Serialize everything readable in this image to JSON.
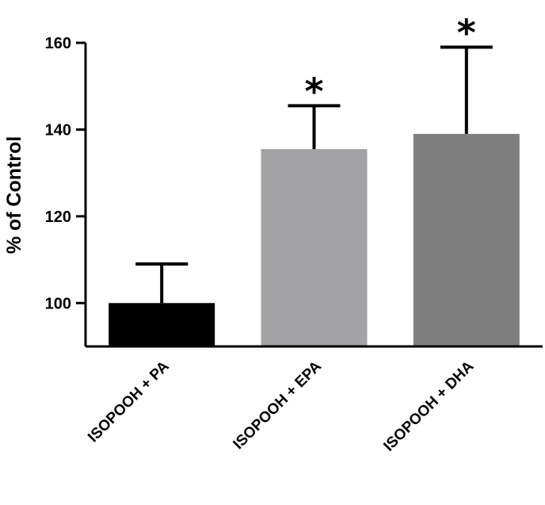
{
  "chart_data": {
    "type": "bar",
    "ylabel": "% of Control",
    "ylim": [
      90,
      160
    ],
    "yticks": [
      100,
      120,
      140,
      160
    ],
    "grid": false,
    "categories": [
      "ISOPOOH + PA",
      "ISOPOOH + EPA",
      "ISOPOOH + DHA"
    ],
    "values": [
      100,
      135.5,
      139
    ],
    "error_upper": [
      9,
      10,
      20
    ],
    "significance": [
      "",
      "*",
      "*"
    ],
    "colors": [
      "#000000",
      "#a3a3a6",
      "#7f7f7f"
    ]
  }
}
